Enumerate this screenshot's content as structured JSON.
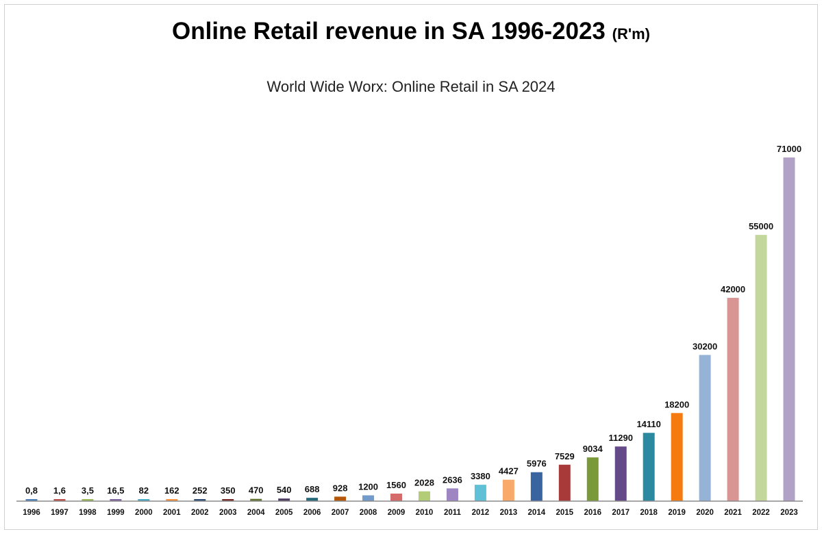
{
  "chart_data": {
    "type": "bar",
    "title": "Online Retail revenue in SA 1996-2023",
    "title_unit": "(R'm)",
    "subtitle": "World Wide Worx: Online Retail in SA 2024",
    "xlabel": "",
    "ylabel": "",
    "ylim": [
      0,
      71000
    ],
    "grid": false,
    "legend": "none",
    "categories": [
      "1996",
      "1997",
      "1998",
      "1999",
      "2000",
      "2001",
      "2002",
      "2003",
      "2004",
      "2005",
      "2006",
      "2007",
      "2008",
      "2009",
      "2010",
      "2011",
      "2012",
      "2013",
      "2014",
      "2015",
      "2016",
      "2017",
      "2018",
      "2019",
      "2020",
      "2021",
      "2022",
      "2023"
    ],
    "values": [
      0.8,
      1.6,
      3.5,
      16.5,
      82,
      162,
      252,
      350,
      470,
      540,
      688,
      928,
      1200,
      1560,
      2028,
      2636,
      3380,
      4427,
      5976,
      7529,
      9034,
      11290,
      14110,
      18200,
      30200,
      42000,
      55000,
      71000
    ],
    "data_labels": [
      "0,8",
      "1,6",
      "3,5",
      "16,5",
      "82",
      "162",
      "252",
      "350",
      "470",
      "540",
      "688",
      "928",
      "1200",
      "1560",
      "2028",
      "2636",
      "3380",
      "4427",
      "5976",
      "7529",
      "9034",
      "11290",
      "14110",
      "18200",
      "30200",
      "42000",
      "55000",
      "71000"
    ],
    "colors": [
      "#4f81bd",
      "#c0504d",
      "#9bbb59",
      "#8064a2",
      "#4bacc6",
      "#f79646",
      "#2c4d75",
      "#772c2a",
      "#5f7530",
      "#4d3b62",
      "#276a7c",
      "#b65708",
      "#729aca",
      "#d46a6a",
      "#b2cc78",
      "#9d86c2",
      "#5fc0d6",
      "#f9aa6a",
      "#3a64a0",
      "#a83a3a",
      "#7a9a3a",
      "#654a8a",
      "#2c8aa0",
      "#f57a10",
      "#95b3d7",
      "#d99594",
      "#c3d69b",
      "#b2a1c7"
    ]
  }
}
